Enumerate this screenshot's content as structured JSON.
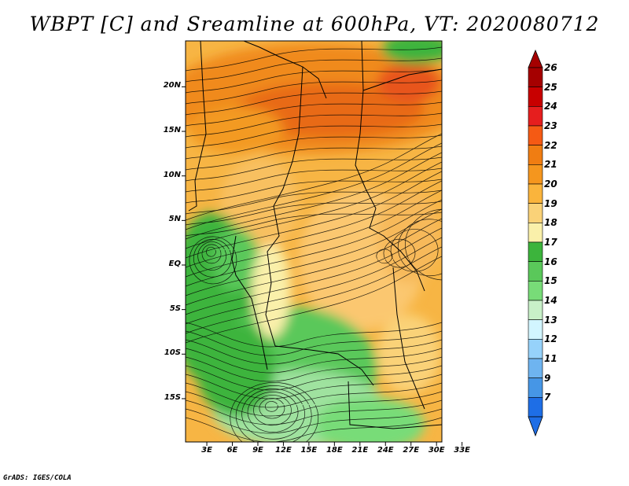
{
  "title": "WBPT [C] and Sreamline at 600hPa, VT: 2020080712",
  "credit": "GrADS: IGES/COLA",
  "map": {
    "lat_labels": [
      {
        "text": "20N",
        "lat": 20
      },
      {
        "text": "15N",
        "lat": 15
      },
      {
        "text": "10N",
        "lat": 10
      },
      {
        "text": "5N",
        "lat": 5
      },
      {
        "text": "EQ",
        "lat": 0
      },
      {
        "text": "5S",
        "lat": -5
      },
      {
        "text": "10S",
        "lat": -10
      },
      {
        "text": "15S",
        "lat": -15
      }
    ],
    "lon_labels": [
      {
        "text": "3E",
        "lon": 3
      },
      {
        "text": "6E",
        "lon": 6
      },
      {
        "text": "9E",
        "lon": 9
      },
      {
        "text": "12E",
        "lon": 12
      },
      {
        "text": "15E",
        "lon": 15
      },
      {
        "text": "18E",
        "lon": 18
      },
      {
        "text": "21E",
        "lon": 21
      },
      {
        "text": "24E",
        "lon": 24
      },
      {
        "text": "27E",
        "lon": 27
      },
      {
        "text": "30E",
        "lon": 30
      },
      {
        "text": "33E",
        "lon": 33
      }
    ]
  },
  "colorbar": {
    "labels": [
      "26",
      "25",
      "24",
      "23",
      "22",
      "21",
      "20",
      "19",
      "18",
      "17",
      "16",
      "15",
      "14",
      "13",
      "12",
      "11",
      "9",
      "7"
    ],
    "colors": [
      "#a50000",
      "#c80000",
      "#e61e1e",
      "#f55a14",
      "#f07d12",
      "#f5961e",
      "#fab43c",
      "#fad278",
      "#faf0aa",
      "#3cb43c",
      "#5ac85a",
      "#78dc78",
      "#c8f0c8",
      "#d2f5ff",
      "#96d2fa",
      "#6eb4f0",
      "#4696e6",
      "#1e6ee6"
    ]
  }
}
